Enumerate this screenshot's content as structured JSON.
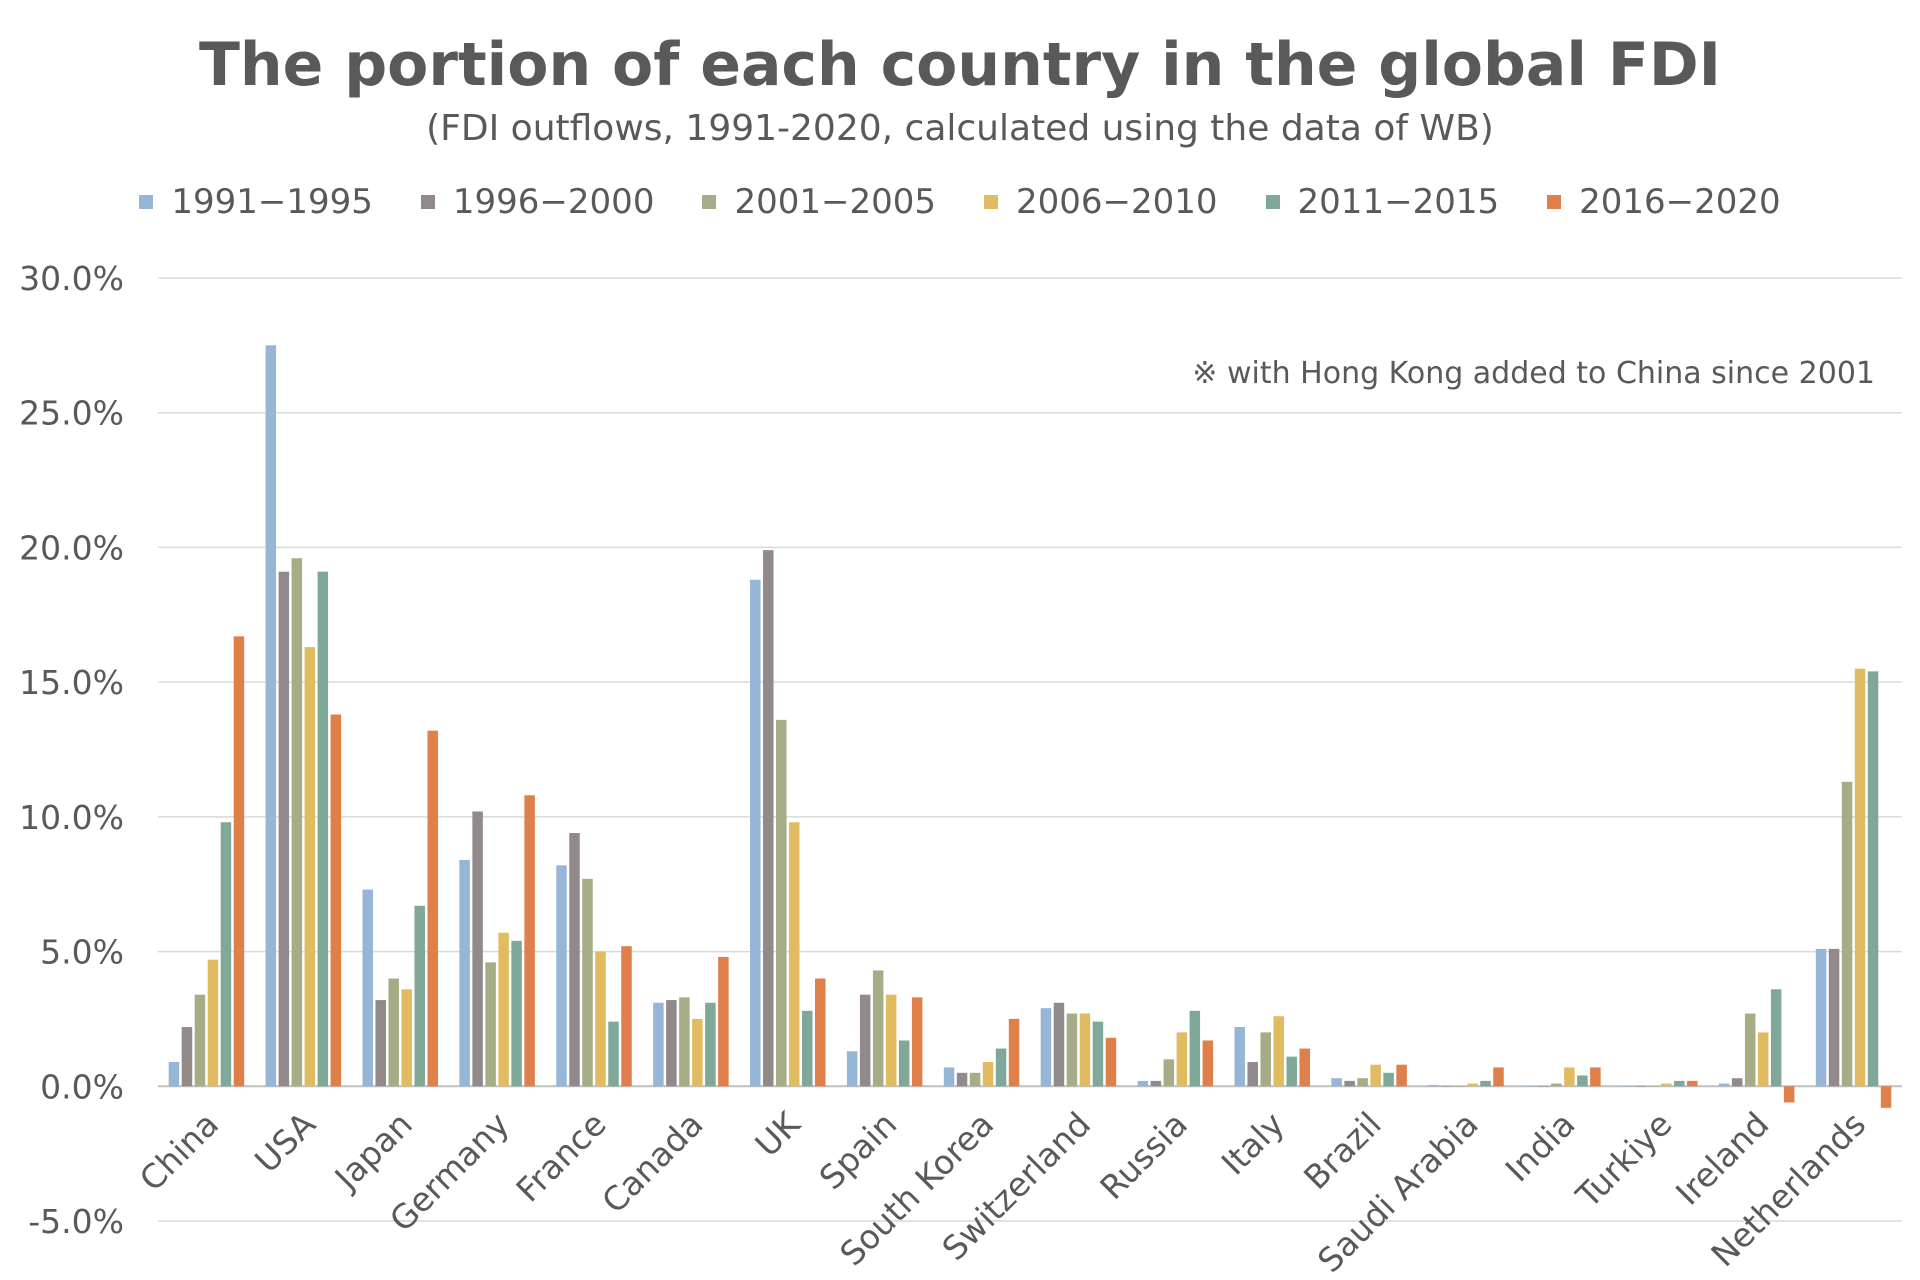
{
  "chart_data": {
    "type": "bar",
    "title": "The portion of each country in the global FDI",
    "subtitle": "(FDI outflows, 1991-2020, calculated using the data of WB)",
    "annotation": "※  with Hong Kong added to China since 2001",
    "xlabel": "",
    "ylabel": "",
    "ylim": [
      -5,
      30
    ],
    "yticks": [
      30,
      25,
      20,
      15,
      10,
      5,
      0,
      -5
    ],
    "ytick_labels": [
      "30.0%",
      "25.0%",
      "20.0%",
      "15.0%",
      "10.0%",
      "5.0%",
      "0.0%",
      "-5.0%"
    ],
    "grid": true,
    "legend_position": "top",
    "categories": [
      "China",
      "USA",
      "Japan",
      "Germany",
      "France",
      "Canada",
      "UK",
      "Spain",
      "South Korea",
      "Switzerland",
      "Russia",
      "Italy",
      "Brazil",
      "Saudi Arabia",
      "India",
      "Turkiye",
      "Ireland",
      "Netherlands"
    ],
    "series": [
      {
        "name": "1991−1995",
        "color": "#95b6d6",
        "values": [
          0.9,
          27.5,
          7.3,
          8.4,
          8.2,
          3.1,
          18.8,
          1.3,
          0.7,
          2.9,
          0.2,
          2.2,
          0.3,
          0.05,
          0.0,
          0.0,
          0.1,
          5.1
        ]
      },
      {
        "name": "1996−2000",
        "color": "#928a8a",
        "values": [
          2.2,
          19.1,
          3.2,
          10.2,
          9.4,
          3.2,
          19.9,
          3.4,
          0.5,
          3.1,
          0.2,
          0.9,
          0.2,
          0.0,
          0.0,
          0.0,
          0.3,
          5.1
        ]
      },
      {
        "name": "2001−2005",
        "color": "#a5ac86",
        "values": [
          3.4,
          19.6,
          4.0,
          4.6,
          7.7,
          3.3,
          13.6,
          4.3,
          0.5,
          2.7,
          1.0,
          2.0,
          0.3,
          0.0,
          0.1,
          0.0,
          2.7,
          11.3
        ]
      },
      {
        "name": "2006−2010",
        "color": "#e0bb60",
        "values": [
          4.7,
          16.3,
          3.6,
          5.7,
          5.0,
          2.5,
          9.8,
          3.4,
          0.9,
          2.7,
          2.0,
          2.6,
          0.8,
          0.1,
          0.7,
          0.1,
          2.0,
          15.5
        ]
      },
      {
        "name": "2011−2015",
        "color": "#7fa898",
        "values": [
          9.8,
          19.1,
          6.7,
          5.4,
          2.4,
          3.1,
          2.8,
          1.7,
          1.4,
          2.4,
          2.8,
          1.1,
          0.5,
          0.2,
          0.4,
          0.2,
          3.6,
          15.4
        ]
      },
      {
        "name": "2016−2020",
        "color": "#df7f4a",
        "values": [
          16.7,
          13.8,
          13.2,
          10.8,
          5.2,
          4.8,
          4.0,
          3.3,
          2.5,
          1.8,
          1.7,
          1.4,
          0.8,
          0.7,
          0.7,
          0.2,
          -0.6,
          -0.8
        ]
      }
    ]
  }
}
